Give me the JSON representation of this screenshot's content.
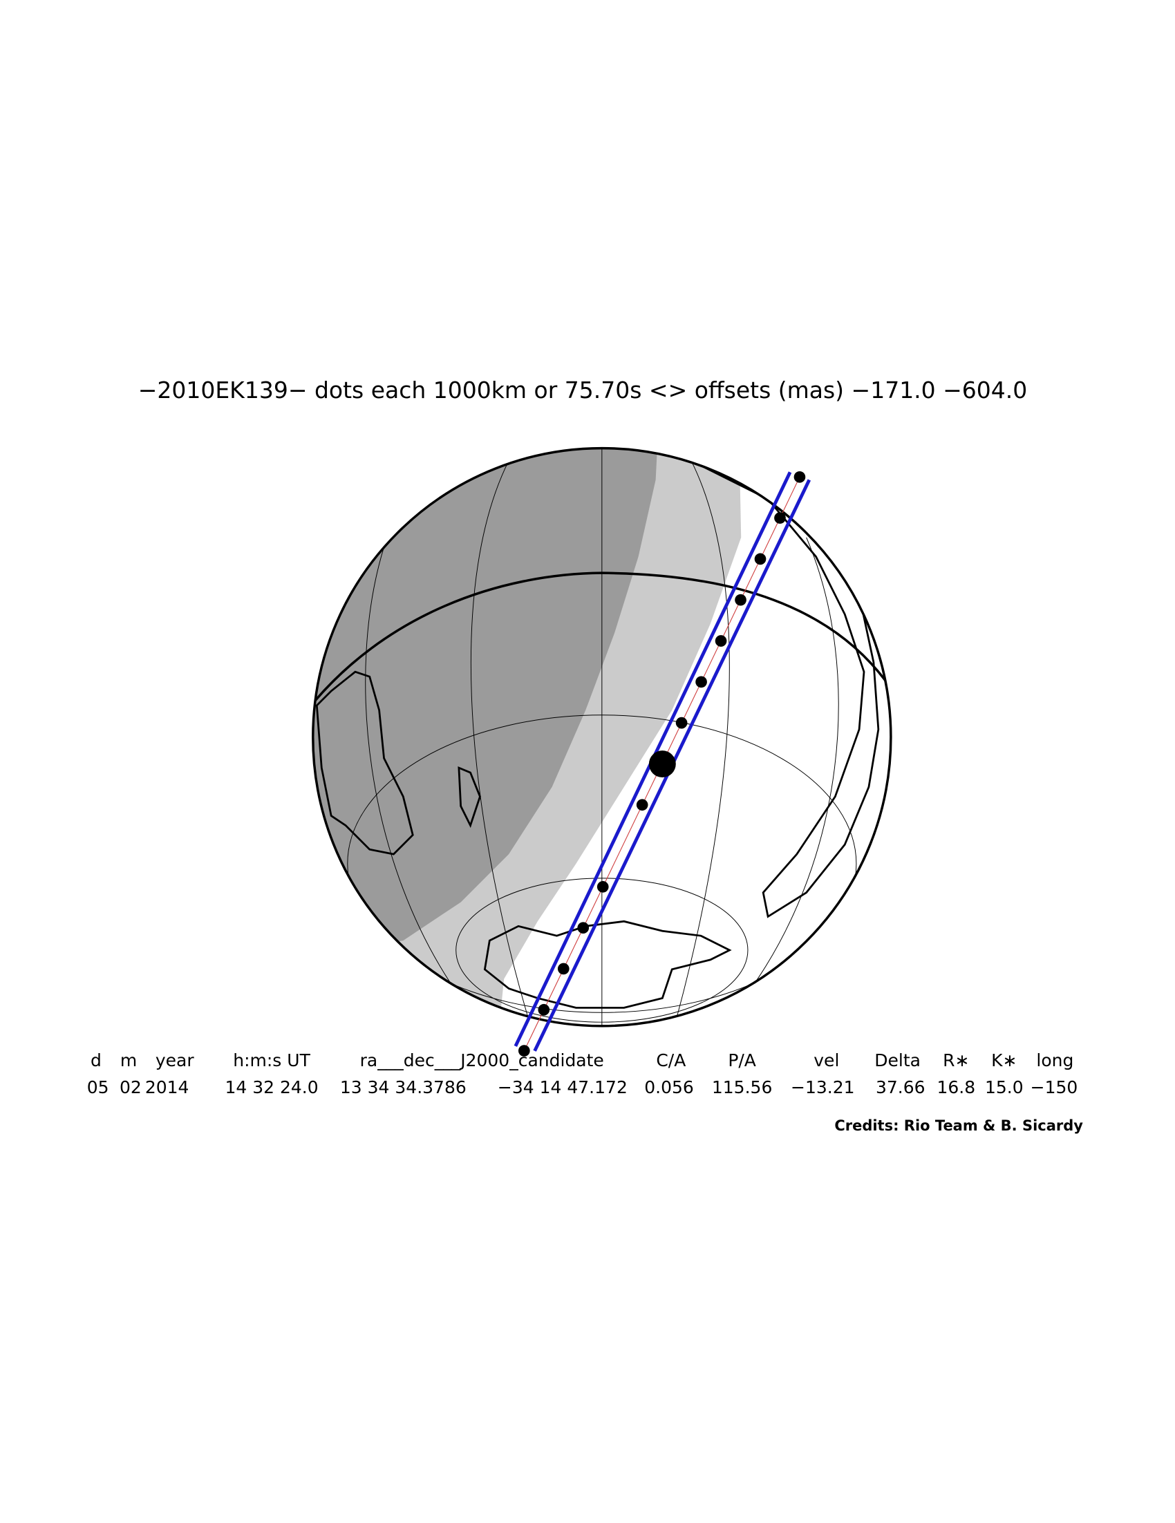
{
  "title": "−2010EK139− dots each 1000km or 75.70s <> offsets (mas) −171.0 −604.0",
  "header": [
    "d",
    "m",
    "year",
    "h:m:s UT",
    "ra___dec___J2000_candidate",
    "C/A",
    "P/A",
    "vel",
    "Delta",
    "R∗",
    "K∗",
    "long"
  ],
  "values": [
    "05",
    "02",
    "2014",
    "14 32 24.0",
    "13 34 34.3786",
    "−34 14 47.172",
    "0.056",
    "115.56",
    "−13.21",
    "37.66",
    "16.8",
    "15.0",
    "−150"
  ],
  "credits": "Credits: Rio Team & B. Sicardy"
}
